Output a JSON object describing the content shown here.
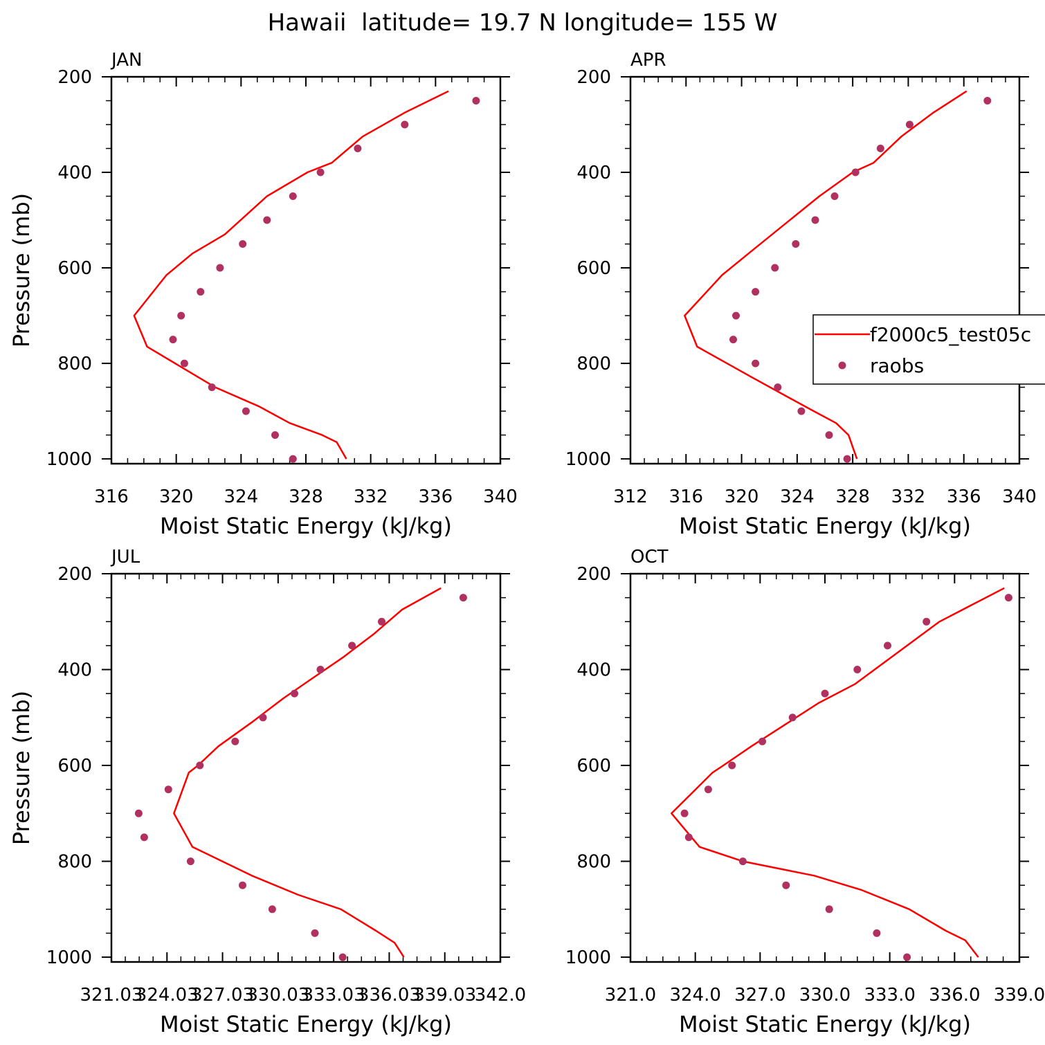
{
  "figure": {
    "title": "Hawaii  latitude= 19.7 N longitude= 155 W"
  },
  "legend": {
    "model_label": "f2000c5_test05c",
    "obs_label": "raobs"
  },
  "colors": {
    "model_line": "#ff0000",
    "obs_marker": "#b03060",
    "axis": "#000000",
    "background": "#ffffff"
  },
  "chart_data": [
    {
      "type": "line",
      "panel": "JAN",
      "title": "JAN",
      "xlabel": "Moist Static Energy (kJ/kg)",
      "ylabel": "Pressure (mb)",
      "xlim": [
        316,
        340
      ],
      "ylim": [
        1010,
        200
      ],
      "x_ticks": [
        "316",
        "320",
        "324",
        "328",
        "332",
        "336",
        "340"
      ],
      "y_ticks": [
        "200",
        "400",
        "600",
        "800",
        "1000"
      ],
      "y_scale": "linear, inverted",
      "grid": false,
      "series": [
        {
          "name": "f2000c5_test05c",
          "kind": "line",
          "x": [
            336.8,
            334.1,
            331.5,
            329.6,
            328.1,
            325.6,
            323.0,
            321.0,
            319.4,
            317.4,
            318.2,
            322.4,
            325.1,
            327.0,
            329.0,
            329.9,
            330.5
          ],
          "y": [
            230,
            275,
            325,
            380,
            400,
            450,
            530,
            570,
            615,
            700,
            765,
            850,
            890,
            925,
            950,
            965,
            1000
          ]
        },
        {
          "name": "raobs",
          "kind": "scatter",
          "x": [
            338.5,
            334.1,
            331.2,
            328.9,
            327.2,
            325.6,
            324.1,
            322.7,
            321.5,
            320.3,
            319.8,
            320.5,
            322.2,
            324.3,
            326.1,
            327.2
          ],
          "y": [
            250,
            300,
            350,
            400,
            450,
            500,
            550,
            600,
            650,
            700,
            750,
            800,
            850,
            900,
            950,
            1000
          ]
        }
      ]
    },
    {
      "type": "line",
      "panel": "APR",
      "title": "APR",
      "xlabel": "Moist Static Energy (kJ/kg)",
      "ylabel": "",
      "xlim": [
        312,
        340
      ],
      "ylim": [
        1010,
        200
      ],
      "x_ticks": [
        "312",
        "316",
        "320",
        "324",
        "328",
        "332",
        "336",
        "340"
      ],
      "y_ticks": [
        "200",
        "400",
        "600",
        "800",
        "1000"
      ],
      "y_scale": "linear, inverted",
      "grid": false,
      "series": [
        {
          "name": "f2000c5_test05c",
          "kind": "line",
          "x": [
            336.2,
            333.8,
            331.5,
            329.5,
            328.0,
            325.6,
            322.2,
            320.5,
            318.6,
            315.9,
            316.8,
            320.8,
            323.3,
            325.2,
            326.8,
            327.7,
            328.0,
            328.3
          ],
          "y": [
            230,
            275,
            325,
            380,
            400,
            450,
            530,
            570,
            615,
            700,
            765,
            830,
            870,
            900,
            925,
            950,
            975,
            1000
          ]
        },
        {
          "name": "raobs",
          "kind": "scatter",
          "x": [
            337.7,
            332.1,
            330.0,
            328.2,
            326.7,
            325.3,
            323.9,
            322.4,
            321.0,
            319.6,
            319.4,
            321.0,
            322.6,
            324.3,
            326.3,
            327.6
          ],
          "y": [
            250,
            300,
            350,
            400,
            450,
            500,
            550,
            600,
            650,
            700,
            750,
            800,
            850,
            900,
            950,
            1000
          ]
        }
      ]
    },
    {
      "type": "line",
      "panel": "JUL",
      "title": "JUL",
      "xlabel": "Moist Static Energy (kJ/kg)",
      "ylabel": "Pressure (mb)",
      "xlim": [
        321.03,
        342.0
      ],
      "ylim": [
        1010,
        200
      ],
      "x_ticks": [
        "321.03",
        "324.03",
        "327.03",
        "330.03",
        "333.03",
        "336.03",
        "339.03",
        "342.0"
      ],
      "y_ticks": [
        "200",
        "400",
        "600",
        "800",
        "1000"
      ],
      "y_scale": "linear, inverted",
      "grid": false,
      "series": [
        {
          "name": "f2000c5_test05c",
          "kind": "line",
          "x": [
            338.8,
            336.7,
            335.2,
            333.5,
            331.8,
            330.3,
            328.6,
            326.8,
            325.7,
            325.2,
            324.4,
            325.4,
            328.6,
            331.1,
            333.4,
            335.3,
            336.3,
            336.8
          ],
          "y": [
            230,
            275,
            325,
            375,
            420,
            460,
            510,
            560,
            600,
            615,
            700,
            770,
            830,
            870,
            900,
            945,
            970,
            1000
          ]
        },
        {
          "name": "raobs",
          "kind": "scatter",
          "x": [
            340.0,
            335.6,
            334.0,
            332.3,
            330.9,
            329.2,
            327.7,
            325.8,
            324.1,
            322.5,
            322.8,
            325.3,
            328.1,
            329.7,
            332.0,
            333.5
          ],
          "y": [
            250,
            300,
            350,
            400,
            450,
            500,
            550,
            600,
            650,
            700,
            750,
            800,
            850,
            900,
            950,
            1000
          ]
        }
      ]
    },
    {
      "type": "line",
      "panel": "OCT",
      "title": "OCT",
      "xlabel": "Moist Static Energy (kJ/kg)",
      "ylabel": "",
      "xlim": [
        321.0,
        339.0
      ],
      "ylim": [
        1010,
        200
      ],
      "x_ticks": [
        "321.0",
        "324.0",
        "327.0",
        "330.0",
        "333.0",
        "336.0",
        "339.0"
      ],
      "y_ticks": [
        "200",
        "400",
        "600",
        "800",
        "1000"
      ],
      "y_scale": "linear, inverted",
      "grid": false,
      "series": [
        {
          "name": "f2000c5_test05c",
          "kind": "line",
          "x": [
            338.3,
            335.3,
            331.4,
            329.7,
            326.6,
            325.3,
            324.8,
            322.9,
            324.2,
            326.2,
            329.5,
            331.7,
            333.9,
            335.6,
            336.5,
            337.1
          ],
          "y": [
            230,
            300,
            430,
            470,
            560,
            600,
            615,
            700,
            770,
            800,
            830,
            860,
            900,
            945,
            965,
            1000
          ]
        },
        {
          "name": "raobs",
          "kind": "scatter",
          "x": [
            338.5,
            334.7,
            332.9,
            331.5,
            330.0,
            328.5,
            327.1,
            325.7,
            324.6,
            323.5,
            323.7,
            326.2,
            328.2,
            330.2,
            332.4,
            333.8
          ],
          "y": [
            250,
            300,
            350,
            400,
            450,
            500,
            550,
            600,
            650,
            700,
            750,
            800,
            850,
            900,
            950,
            1000
          ]
        }
      ]
    }
  ]
}
